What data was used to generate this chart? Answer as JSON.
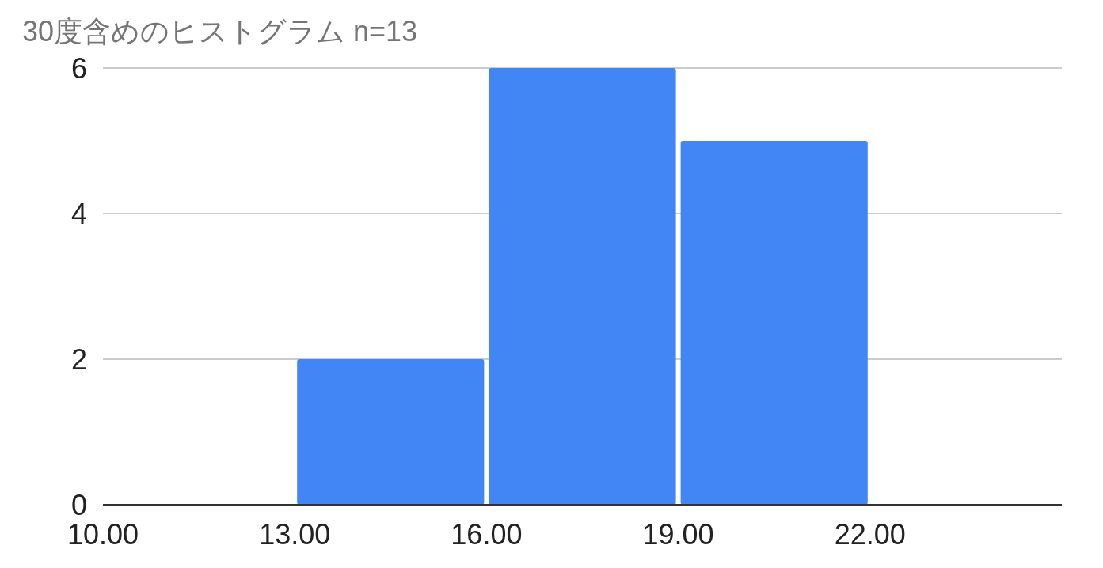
{
  "chart_data": {
    "type": "histogram",
    "title": "30度含めのヒストグラム n=13",
    "bins": [
      13,
      16,
      19,
      22
    ],
    "values": [
      2,
      6,
      5
    ],
    "color": "#4285f4",
    "xlim": [
      10,
      25
    ],
    "xticks": [
      {
        "value": 10,
        "label": "10.00"
      },
      {
        "value": 13,
        "label": "13.00"
      },
      {
        "value": 16,
        "label": "16.00"
      },
      {
        "value": 19,
        "label": "19.00"
      },
      {
        "value": 22,
        "label": "22.00"
      }
    ],
    "ylim": [
      0,
      6
    ],
    "yticks": [
      0,
      2,
      4,
      6
    ],
    "grid": "y"
  }
}
